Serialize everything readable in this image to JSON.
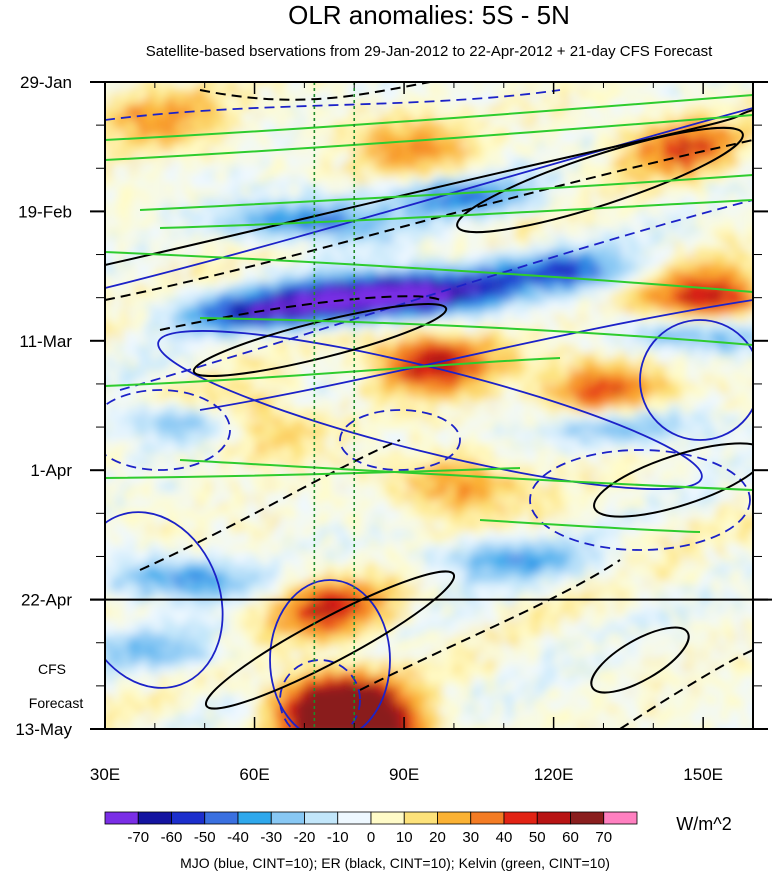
{
  "chart_data": {
    "type": "heatmap",
    "title": "OLR anomalies: 5S - 5N",
    "subtitle": "Satellite-based bservations from 29-Jan-2012 to 22-Apr-2012 + 21-day CFS Forecast",
    "x_axis": {
      "ticks": [
        "30E",
        "60E",
        "90E",
        "120E",
        "150E"
      ],
      "tick_values": [
        30,
        60,
        90,
        120,
        150
      ],
      "range": [
        30,
        160
      ]
    },
    "y_axis": {
      "ticks": [
        "29-Jan",
        "19-Feb",
        "11-Mar",
        "1-Apr",
        "22-Apr",
        "13-May"
      ],
      "tick_days": [
        0,
        21,
        42,
        63,
        84,
        105
      ],
      "range_days": [
        0,
        105
      ]
    },
    "observation_end_label": "22-Apr",
    "forecast_label_line1": "CFS",
    "forecast_label_line2": "Forecast",
    "reference_longitudes": [
      72,
      80
    ],
    "colorbar": {
      "unit": "W/m^2",
      "levels": [
        "-70",
        "-60",
        "-50",
        "-40",
        "-30",
        "-20",
        "-10",
        "0",
        "10",
        "20",
        "30",
        "40",
        "50",
        "60",
        "70"
      ],
      "colors": [
        "#7a2ee6",
        "#1414a0",
        "#1c2fcc",
        "#3a70e0",
        "#2fa8ec",
        "#88c8f4",
        "#c2e6fa",
        "#eef8ff",
        "#fffbc8",
        "#fde27a",
        "#fbb234",
        "#f47c24",
        "#e22314",
        "#b81414",
        "#8a1e1e",
        "#ff80c0"
      ]
    },
    "footnote": "MJO (blue, CINT=10); ER (black, CINT=10); Kelvin (green, CINT=10)"
  }
}
